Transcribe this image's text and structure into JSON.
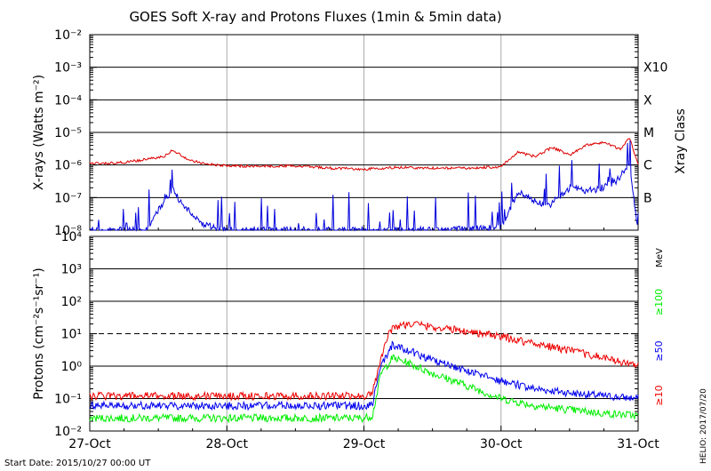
{
  "title": "GOES Soft X-ray and Protons Fluxes   (1min & 5min data)",
  "footer": {
    "start_date": "Start Date: 2015/10/27 00:00 UT",
    "credit": "HELIO: 2017/07/20"
  },
  "colors": {
    "xray_long": "#dd0000",
    "xray_short": "#0000dd",
    "p10": "#ee0000",
    "p50": "#0000ee",
    "p100": "#00ee00",
    "grid": "#000000",
    "day_line": "#aaaaaa"
  },
  "chart_data": [
    {
      "type": "line",
      "panel": "xray",
      "ylabel": "X-rays (Watts m⁻²)",
      "yscale": "log",
      "ylim": [
        1e-08,
        0.01
      ],
      "ytick_labels": [
        "10⁻⁸",
        "10⁻⁷",
        "10⁻⁶",
        "10⁻⁵",
        "10⁻⁴",
        "10⁻³",
        "10⁻²"
      ],
      "right_axis_label": "Xray Class",
      "class_labels": [
        {
          "label": "B",
          "value": 1e-07
        },
        {
          "label": "C",
          "value": 1e-06
        },
        {
          "label": "M",
          "value": 1e-05
        },
        {
          "label": "X",
          "value": 0.0001
        },
        {
          "label": "X10",
          "value": 0.001
        }
      ],
      "xlim": [
        "2015-10-27 00:00",
        "2015-10-31 00:00"
      ],
      "x_tick_labels": [
        "27-Oct",
        "28-Oct",
        "29-Oct",
        "30-Oct",
        "31-Oct"
      ],
      "series": [
        {
          "name": "",
          "color": "#dd0000",
          "x": [
            "2015-10-27 00:00",
            "2015-10-27 06:00",
            "2015-10-27 10:00",
            "2015-10-27 13:00",
            "2015-10-27 14:30",
            "2015-10-27 15:30",
            "2015-10-27 17:00",
            "2015-10-27 20:00",
            "2015-10-28 00:00",
            "2015-10-28 06:00",
            "2015-10-28 10:00",
            "2015-10-28 14:00",
            "2015-10-28 18:00",
            "2015-10-29 00:00",
            "2015-10-29 06:00",
            "2015-10-29 12:00",
            "2015-10-29 18:00",
            "2015-10-30 00:00",
            "2015-10-30 03:00",
            "2015-10-30 06:00",
            "2015-10-30 09:00",
            "2015-10-30 12:00",
            "2015-10-30 15:00",
            "2015-10-30 18:00",
            "2015-10-30 21:00",
            "2015-10-30 22:30",
            "2015-10-31 00:00"
          ],
          "y": [
            1.1e-06,
            1.2e-06,
            1.5e-06,
            1.8e-06,
            3e-06,
            2.2e-06,
            1.5e-06,
            1.1e-06,
            9.5e-07,
            9e-07,
            9.5e-07,
            9e-07,
            8e-07,
            7.5e-07,
            8.5e-07,
            8e-07,
            8e-07,
            9e-07,
            2.5e-06,
            1.8e-06,
            3.5e-06,
            2e-06,
            4e-06,
            5e-06,
            3e-06,
            7e-06,
            1e-06
          ]
        },
        {
          "name": "",
          "color": "#0000dd",
          "x": [
            "2015-10-27 00:00",
            "2015-10-27 10:00",
            "2015-10-27 12:00",
            "2015-10-27 14:30",
            "2015-10-27 16:00",
            "2015-10-27 18:00",
            "2015-10-27 20:00",
            "2015-10-28 00:00",
            "2015-10-28 12:00",
            "2015-10-29 00:00",
            "2015-10-29 12:00",
            "2015-10-30 00:00",
            "2015-10-30 03:00",
            "2015-10-30 08:00",
            "2015-10-30 12:00",
            "2015-10-30 16:00",
            "2015-10-30 20:00",
            "2015-10-30 22:30",
            "2015-10-31 00:00"
          ],
          "y": [
            1e-08,
            1e-08,
            4e-08,
            1.8e-07,
            7e-08,
            3e-08,
            1.5e-08,
            1e-08,
            1e-08,
            1e-08,
            1e-08,
            1.2e-08,
            1.5e-07,
            5e-08,
            2e-07,
            1.5e-07,
            3e-07,
            1e-06,
            1e-08
          ]
        }
      ]
    },
    {
      "type": "line",
      "panel": "protons",
      "ylabel": "Protons (cm⁻²s⁻¹sr⁻¹)",
      "yscale": "log",
      "ylim": [
        0.01,
        10000
      ],
      "ytick_labels": [
        "10⁻²",
        "10⁻¹",
        "10⁰",
        "10¹",
        "10²",
        "10³",
        "10⁴"
      ],
      "right_axis_label": "MeV",
      "threshold_value": 10,
      "xlim": [
        "2015-10-27 00:00",
        "2015-10-31 00:00"
      ],
      "x_tick_labels": [
        "27-Oct",
        "28-Oct",
        "29-Oct",
        "30-Oct",
        "31-Oct"
      ],
      "series": [
        {
          "name": "≥10",
          "color": "#ee0000",
          "x": [
            "2015-10-27 00:00",
            "2015-10-28 00:00",
            "2015-10-29 00:00",
            "2015-10-29 01:30",
            "2015-10-29 03:00",
            "2015-10-29 04:30",
            "2015-10-29 06:00",
            "2015-10-29 09:00",
            "2015-10-29 12:00",
            "2015-10-29 18:00",
            "2015-10-30 00:00",
            "2015-10-30 06:00",
            "2015-10-30 12:00",
            "2015-10-30 18:00",
            "2015-10-31 00:00"
          ],
          "y": [
            0.12,
            0.12,
            0.12,
            0.15,
            2.0,
            12,
            18,
            20,
            16,
            12,
            8,
            5,
            3,
            1.8,
            1.0
          ]
        },
        {
          "name": "≥50",
          "color": "#0000ee",
          "x": [
            "2015-10-27 00:00",
            "2015-10-28 00:00",
            "2015-10-29 00:00",
            "2015-10-29 01:30",
            "2015-10-29 03:00",
            "2015-10-29 05:00",
            "2015-10-29 08:00",
            "2015-10-29 12:00",
            "2015-10-29 18:00",
            "2015-10-30 00:00",
            "2015-10-30 06:00",
            "2015-10-30 12:00",
            "2015-10-30 18:00",
            "2015-10-31 00:00"
          ],
          "y": [
            0.06,
            0.06,
            0.06,
            0.07,
            1.0,
            4.5,
            3.0,
            1.5,
            0.7,
            0.35,
            0.2,
            0.15,
            0.12,
            0.1
          ]
        },
        {
          "name": "≥100",
          "color": "#00ee00",
          "x": [
            "2015-10-27 00:00",
            "2015-10-28 00:00",
            "2015-10-29 00:00",
            "2015-10-29 01:30",
            "2015-10-29 03:00",
            "2015-10-29 05:00",
            "2015-10-29 08:00",
            "2015-10-29 12:00",
            "2015-10-29 18:00",
            "2015-10-30 00:00",
            "2015-10-30 06:00",
            "2015-10-30 12:00",
            "2015-10-30 18:00",
            "2015-10-31 00:00"
          ],
          "y": [
            0.025,
            0.025,
            0.025,
            0.03,
            0.6,
            1.8,
            1.2,
            0.6,
            0.25,
            0.1,
            0.06,
            0.045,
            0.035,
            0.03
          ]
        }
      ]
    }
  ]
}
